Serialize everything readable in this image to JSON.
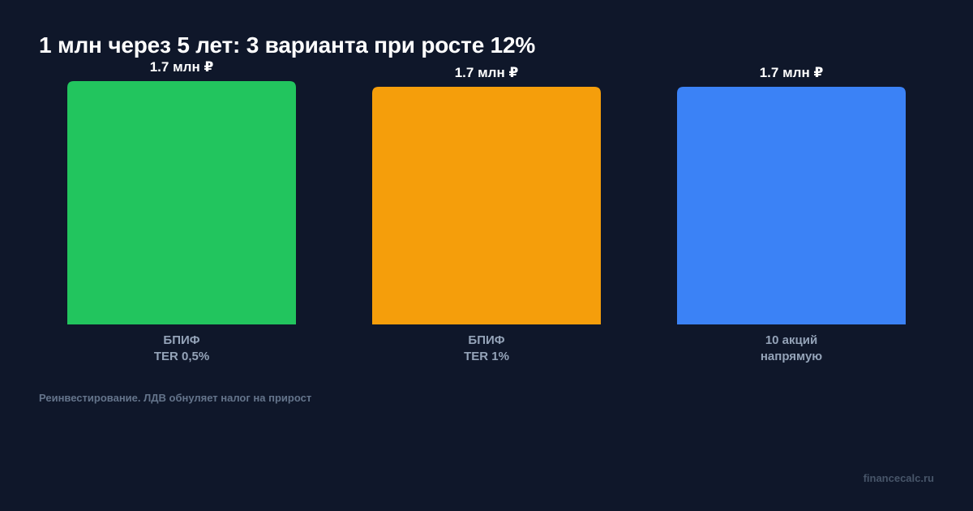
{
  "chart_data": {
    "type": "bar",
    "title": "1 млн через 5 лет: 3 варианта при росте 12%",
    "categories": [
      [
        "БПИФ",
        "TER 0,5%"
      ],
      [
        "БПИФ",
        "TER 1%"
      ],
      [
        "10 акций",
        "напрямую"
      ]
    ],
    "values": [
      1.7,
      1.7,
      1.7
    ],
    "value_labels": [
      "1.7 млн ₽",
      "1.7 млн ₽",
      "1.7 млн ₽"
    ],
    "colors": [
      "#22c55e",
      "#f59e0b",
      "#3b82f6"
    ],
    "unit": "млн ₽",
    "xlabel": "",
    "ylabel": "",
    "grid": false,
    "legend": "none"
  },
  "footer": {
    "note": "Реинвестирование. ЛДВ обнуляет налог на прирост",
    "brand": "financecalc.ru"
  }
}
